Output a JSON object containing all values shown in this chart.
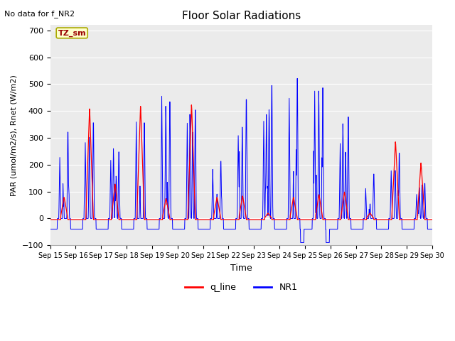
{
  "title": "Floor Solar Radiations",
  "subtitle": "No data for f_NR2",
  "ylabel": "PAR (umol/m2/s), Rnet (W/m2)",
  "xlabel": "Time",
  "ylim": [
    -100,
    720
  ],
  "yticks": [
    -100,
    0,
    100,
    200,
    300,
    400,
    500,
    600,
    700
  ],
  "xtick_labels": [
    "Sep 15",
    "Sep 16",
    "Sep 17",
    "Sep 18",
    "Sep 19",
    "Sep 20",
    "Sep 21",
    "Sep 22",
    "Sep 23",
    "Sep 24",
    "Sep 25",
    "Sep 26",
    "Sep 27",
    "Sep 28",
    "Sep 29",
    "Sep 30"
  ],
  "legend_labels": [
    "q_line",
    "NR1"
  ],
  "annotation_text": "TZ_sm",
  "annotation_bg": "#ffffcc",
  "annotation_border": "#aaaa00",
  "bg_color": "#ebebeb",
  "line_color_red": "#ff0000",
  "line_color_blue": "#0000ff",
  "red_peaks": [
    80,
    415,
    130,
    425,
    75,
    430,
    80,
    85,
    20,
    80,
    90,
    100,
    20,
    290,
    210
  ],
  "blue_peaks": [
    370,
    410,
    285,
    410,
    500,
    465,
    245,
    510,
    570,
    600,
    560,
    435,
    190,
    280,
    150
  ],
  "n_days": 15,
  "n_per_day": 96
}
